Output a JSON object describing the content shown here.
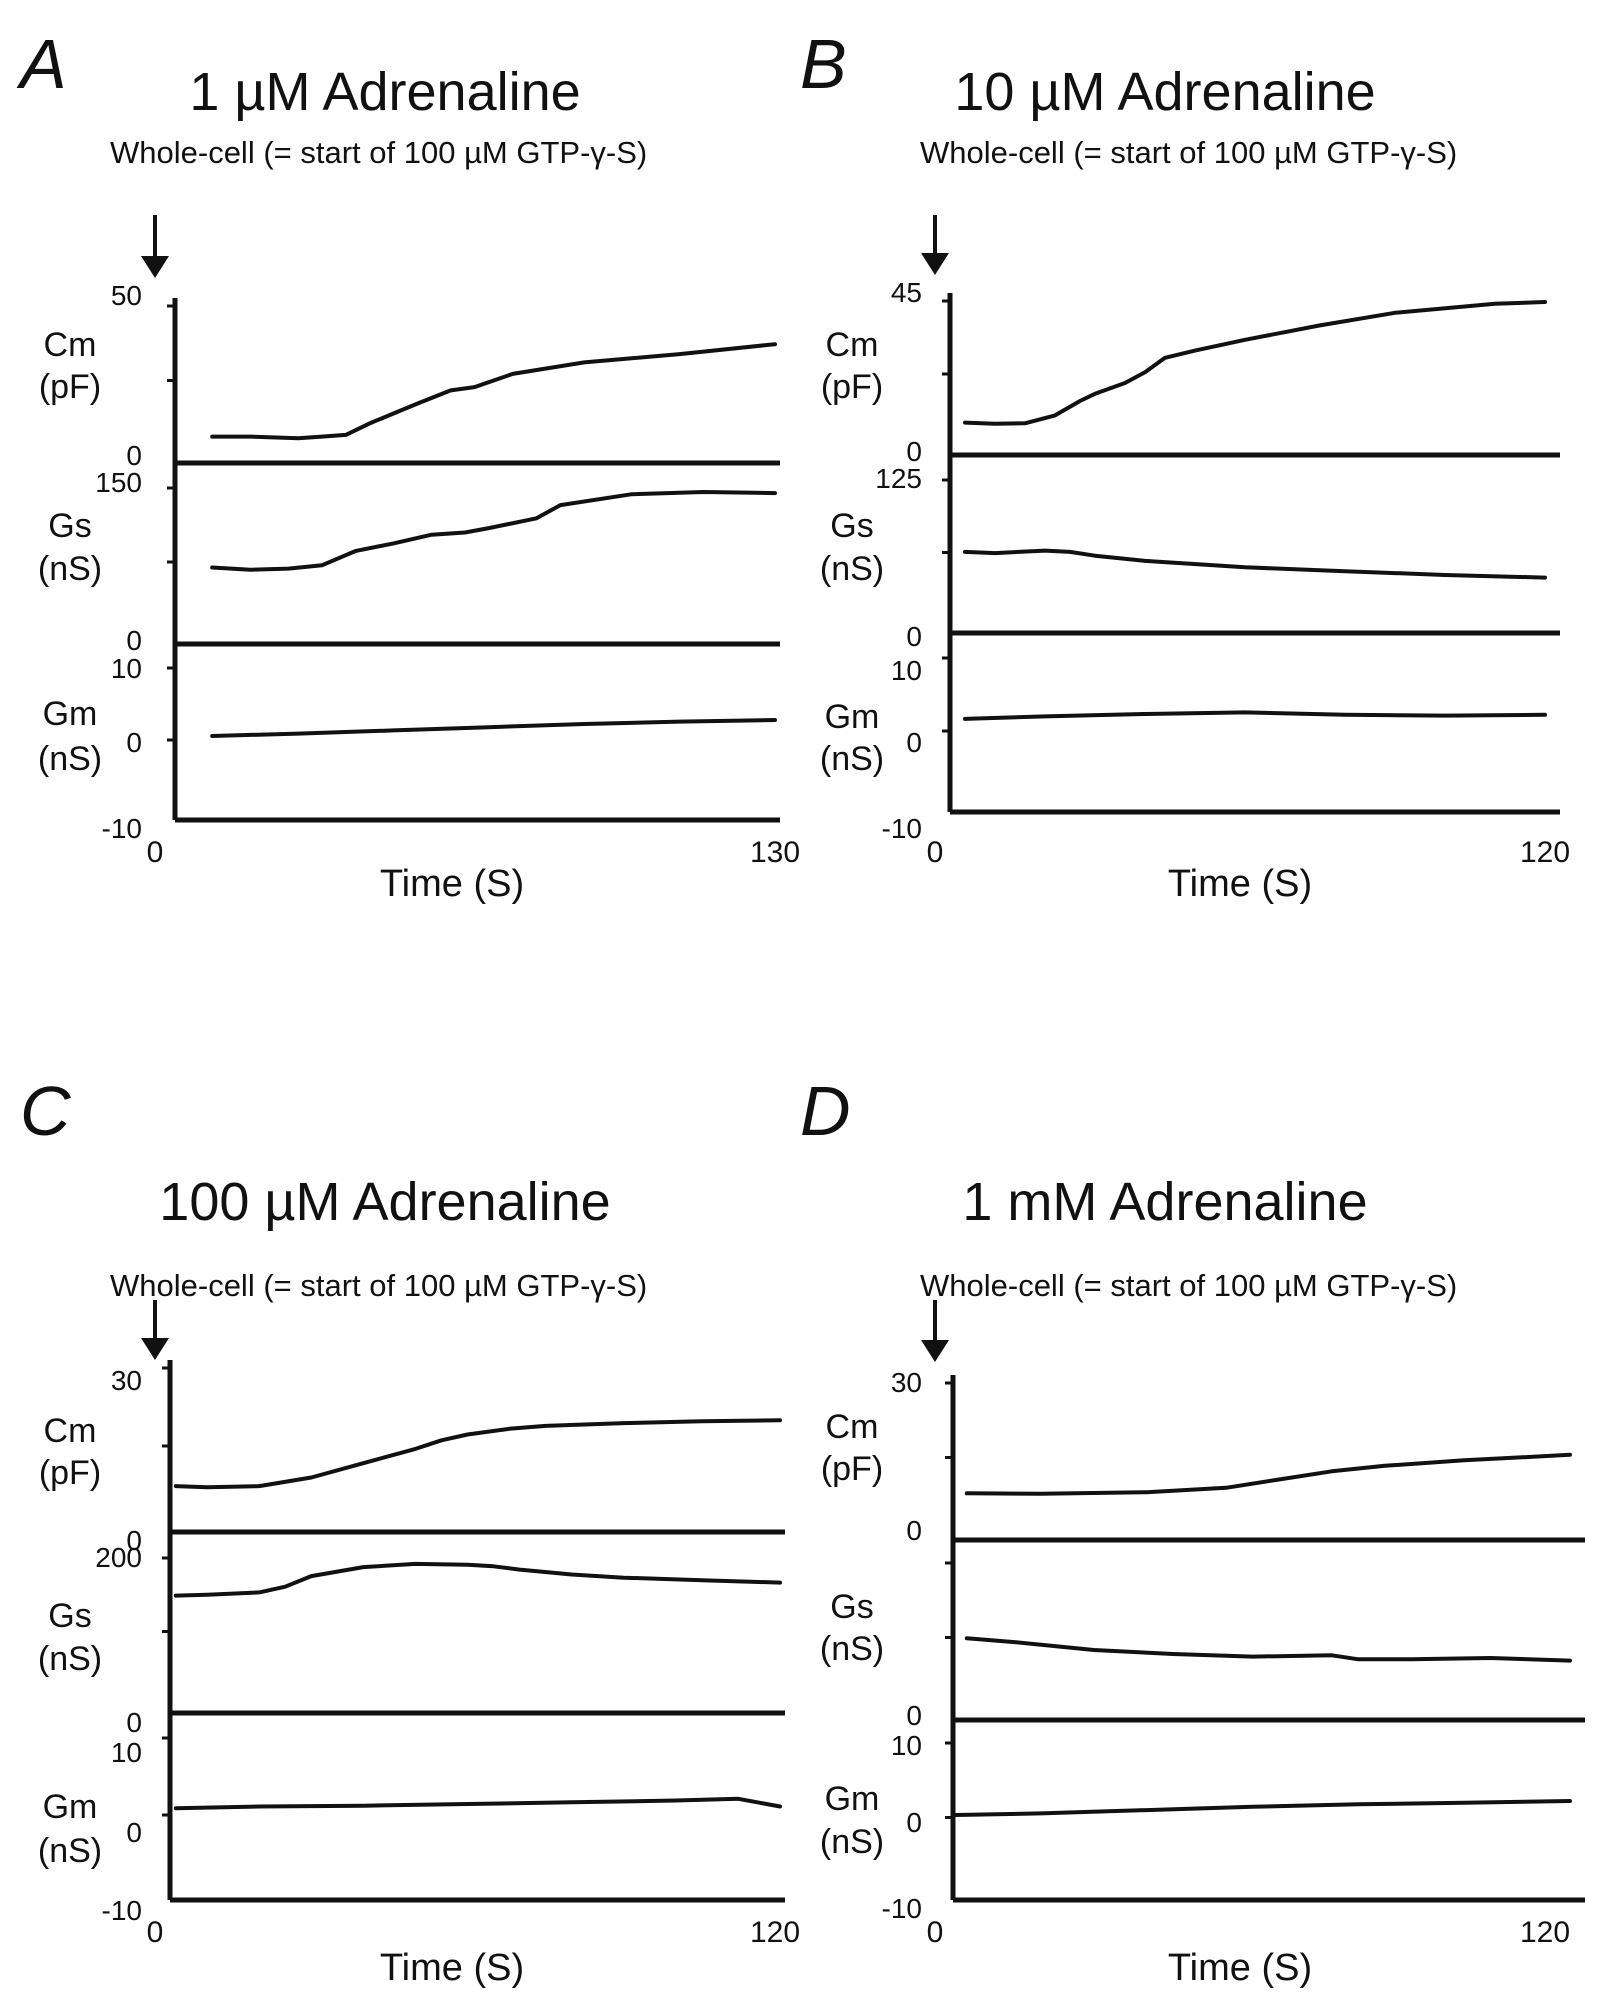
{
  "figure": {
    "xlabel": "Time (S)",
    "annotation": "Whole-cell (= start of 100 µM GTP-γ-S)",
    "colors": {
      "trace": "#111111",
      "axis": "#111111",
      "background": "#ffffff"
    }
  },
  "chart_data": [
    {
      "panel": "A",
      "type": "line",
      "title": "1 µM Adrenaline",
      "xlabel": "Time (S)",
      "xlim": [
        0,
        130
      ],
      "x_ticks": [
        "0",
        "130"
      ],
      "annotation": "Whole-cell (= start of 100 µM GTP-γ-S)",
      "series": [
        {
          "name": "Cm",
          "unit": "(pF)",
          "ylim": [
            0,
            50
          ],
          "tick_labels": [
            "50",
            "0"
          ],
          "x": [
            12,
            20,
            30,
            35,
            40,
            45,
            55,
            62,
            67,
            75,
            90,
            110,
            130
          ],
          "values": [
            8,
            8,
            7.5,
            8,
            8.5,
            12,
            18,
            22,
            23,
            27,
            30.5,
            33,
            36
          ]
        },
        {
          "name": "Gs",
          "unit": "(nS)",
          "ylim": [
            0,
            150
          ],
          "tick_labels": [
            "150",
            "0"
          ],
          "x": [
            12,
            20,
            28,
            35,
            42,
            50,
            58,
            65,
            70,
            80,
            85,
            100,
            115,
            130
          ],
          "values": [
            70,
            68,
            69,
            72,
            85,
            92,
            100,
            102,
            106,
            115,
            127,
            137,
            139,
            138
          ]
        },
        {
          "name": "Gm",
          "unit": "(nS)",
          "ylim": [
            -10,
            10
          ],
          "tick_labels": [
            "10",
            "0",
            "-10"
          ],
          "x": [
            12,
            30,
            50,
            70,
            90,
            110,
            130
          ],
          "values": [
            0.5,
            0.8,
            1.2,
            1.6,
            2.0,
            2.3,
            2.5
          ]
        }
      ]
    },
    {
      "panel": "B",
      "type": "line",
      "title": "10 µM Adrenaline",
      "xlabel": "Time (S)",
      "xlim": [
        0,
        120
      ],
      "x_ticks": [
        "0",
        "120"
      ],
      "annotation": "Whole-cell (= start of 100 µM GTP-γ-S)",
      "series": [
        {
          "name": "Cm",
          "unit": "(pF)",
          "ylim": [
            0,
            45
          ],
          "tick_labels": [
            "45",
            "0"
          ],
          "x": [
            4,
            10,
            16,
            22,
            27,
            30,
            36,
            40,
            44,
            50,
            60,
            75,
            90,
            110,
            120
          ],
          "values": [
            9,
            8.7,
            8.8,
            11,
            15,
            17,
            20,
            23,
            27,
            29,
            32,
            36,
            39.5,
            42,
            42.5
          ]
        },
        {
          "name": "Gs",
          "unit": "(nS)",
          "ylim": [
            0,
            125
          ],
          "tick_labels": [
            "125",
            "0"
          ],
          "x": [
            4,
            10,
            20,
            25,
            30,
            40,
            60,
            80,
            100,
            120
          ],
          "values": [
            63,
            62,
            64,
            63,
            60,
            56,
            51,
            48,
            45,
            43
          ]
        },
        {
          "name": "Gm",
          "unit": "(nS)",
          "ylim": [
            -10,
            10
          ],
          "tick_labels": [
            "10",
            "0",
            "-10"
          ],
          "x": [
            4,
            20,
            40,
            60,
            80,
            100,
            120
          ],
          "values": [
            1.5,
            1.8,
            2.1,
            2.3,
            2.0,
            1.9,
            2.0
          ]
        }
      ]
    },
    {
      "panel": "C",
      "type": "line",
      "title": "100 µM Adrenaline",
      "xlabel": "Time (S)",
      "xlim": [
        0,
        120
      ],
      "x_ticks": [
        "0",
        "120"
      ],
      "annotation": "Whole-cell (= start of 100 µM GTP-γ-S)",
      "series": [
        {
          "name": "Cm",
          "unit": "(pF)",
          "ylim": [
            0,
            30
          ],
          "tick_labels": [
            "30",
            "0"
          ],
          "x": [
            4,
            10,
            20,
            30,
            40,
            50,
            55,
            60,
            68,
            75,
            90,
            105,
            120
          ],
          "values": [
            8,
            7.8,
            8,
            9.5,
            12,
            14.5,
            16,
            17,
            18,
            18.5,
            19,
            19.3,
            19.5
          ]
        },
        {
          "name": "Gs",
          "unit": "(nS)",
          "ylim": [
            0,
            200
          ],
          "tick_labels": [
            "200",
            "0"
          ],
          "x": [
            4,
            10,
            20,
            25,
            30,
            40,
            50,
            60,
            65,
            70,
            80,
            90,
            105,
            120
          ],
          "values": [
            144,
            145,
            148,
            155,
            168,
            179,
            183,
            182,
            180,
            176,
            170,
            166,
            163,
            160
          ]
        },
        {
          "name": "Gm",
          "unit": "(nS)",
          "ylim": [
            -10,
            10
          ],
          "tick_labels": [
            "10",
            "0",
            "-10"
          ],
          "x": [
            4,
            20,
            40,
            60,
            80,
            100,
            112,
            120
          ],
          "values": [
            0.8,
            1.0,
            1.1,
            1.3,
            1.5,
            1.7,
            1.9,
            1.0
          ]
        }
      ]
    },
    {
      "panel": "D",
      "type": "line",
      "title": "1 mM Adrenaline",
      "xlabel": "Time (S)",
      "xlim": [
        0,
        120
      ],
      "x_ticks": [
        "0",
        "120"
      ],
      "annotation": "Whole-cell (= start of 100 µM GTP-γ-S)",
      "series": [
        {
          "name": "Cm",
          "unit": "(pF)",
          "ylim": [
            0,
            30
          ],
          "tick_labels": [
            "30",
            "0"
          ],
          "x": [
            6,
            20,
            40,
            55,
            65,
            75,
            85,
            100,
            120
          ],
          "values": [
            8.5,
            8.4,
            8.7,
            9.5,
            11,
            12.5,
            13.5,
            14.5,
            15.5
          ]
        },
        {
          "name": "Gs",
          "unit": "(nS)",
          "ylim": [
            0,
            125
          ],
          "tick_labels": [
            "0"
          ],
          "x": [
            6,
            15,
            30,
            45,
            60,
            75,
            80,
            90,
            105,
            120
          ],
          "values": [
            62,
            59,
            53,
            50,
            48,
            49,
            46,
            46,
            47,
            45
          ]
        },
        {
          "name": "Gm",
          "unit": "(nS)",
          "ylim": [
            -10,
            10
          ],
          "tick_labels": [
            "10",
            "0",
            "-10"
          ],
          "x": [
            4,
            20,
            40,
            60,
            80,
            100,
            120
          ],
          "values": [
            0.3,
            0.5,
            0.9,
            1.3,
            1.6,
            1.8,
            2.0
          ]
        }
      ]
    }
  ]
}
